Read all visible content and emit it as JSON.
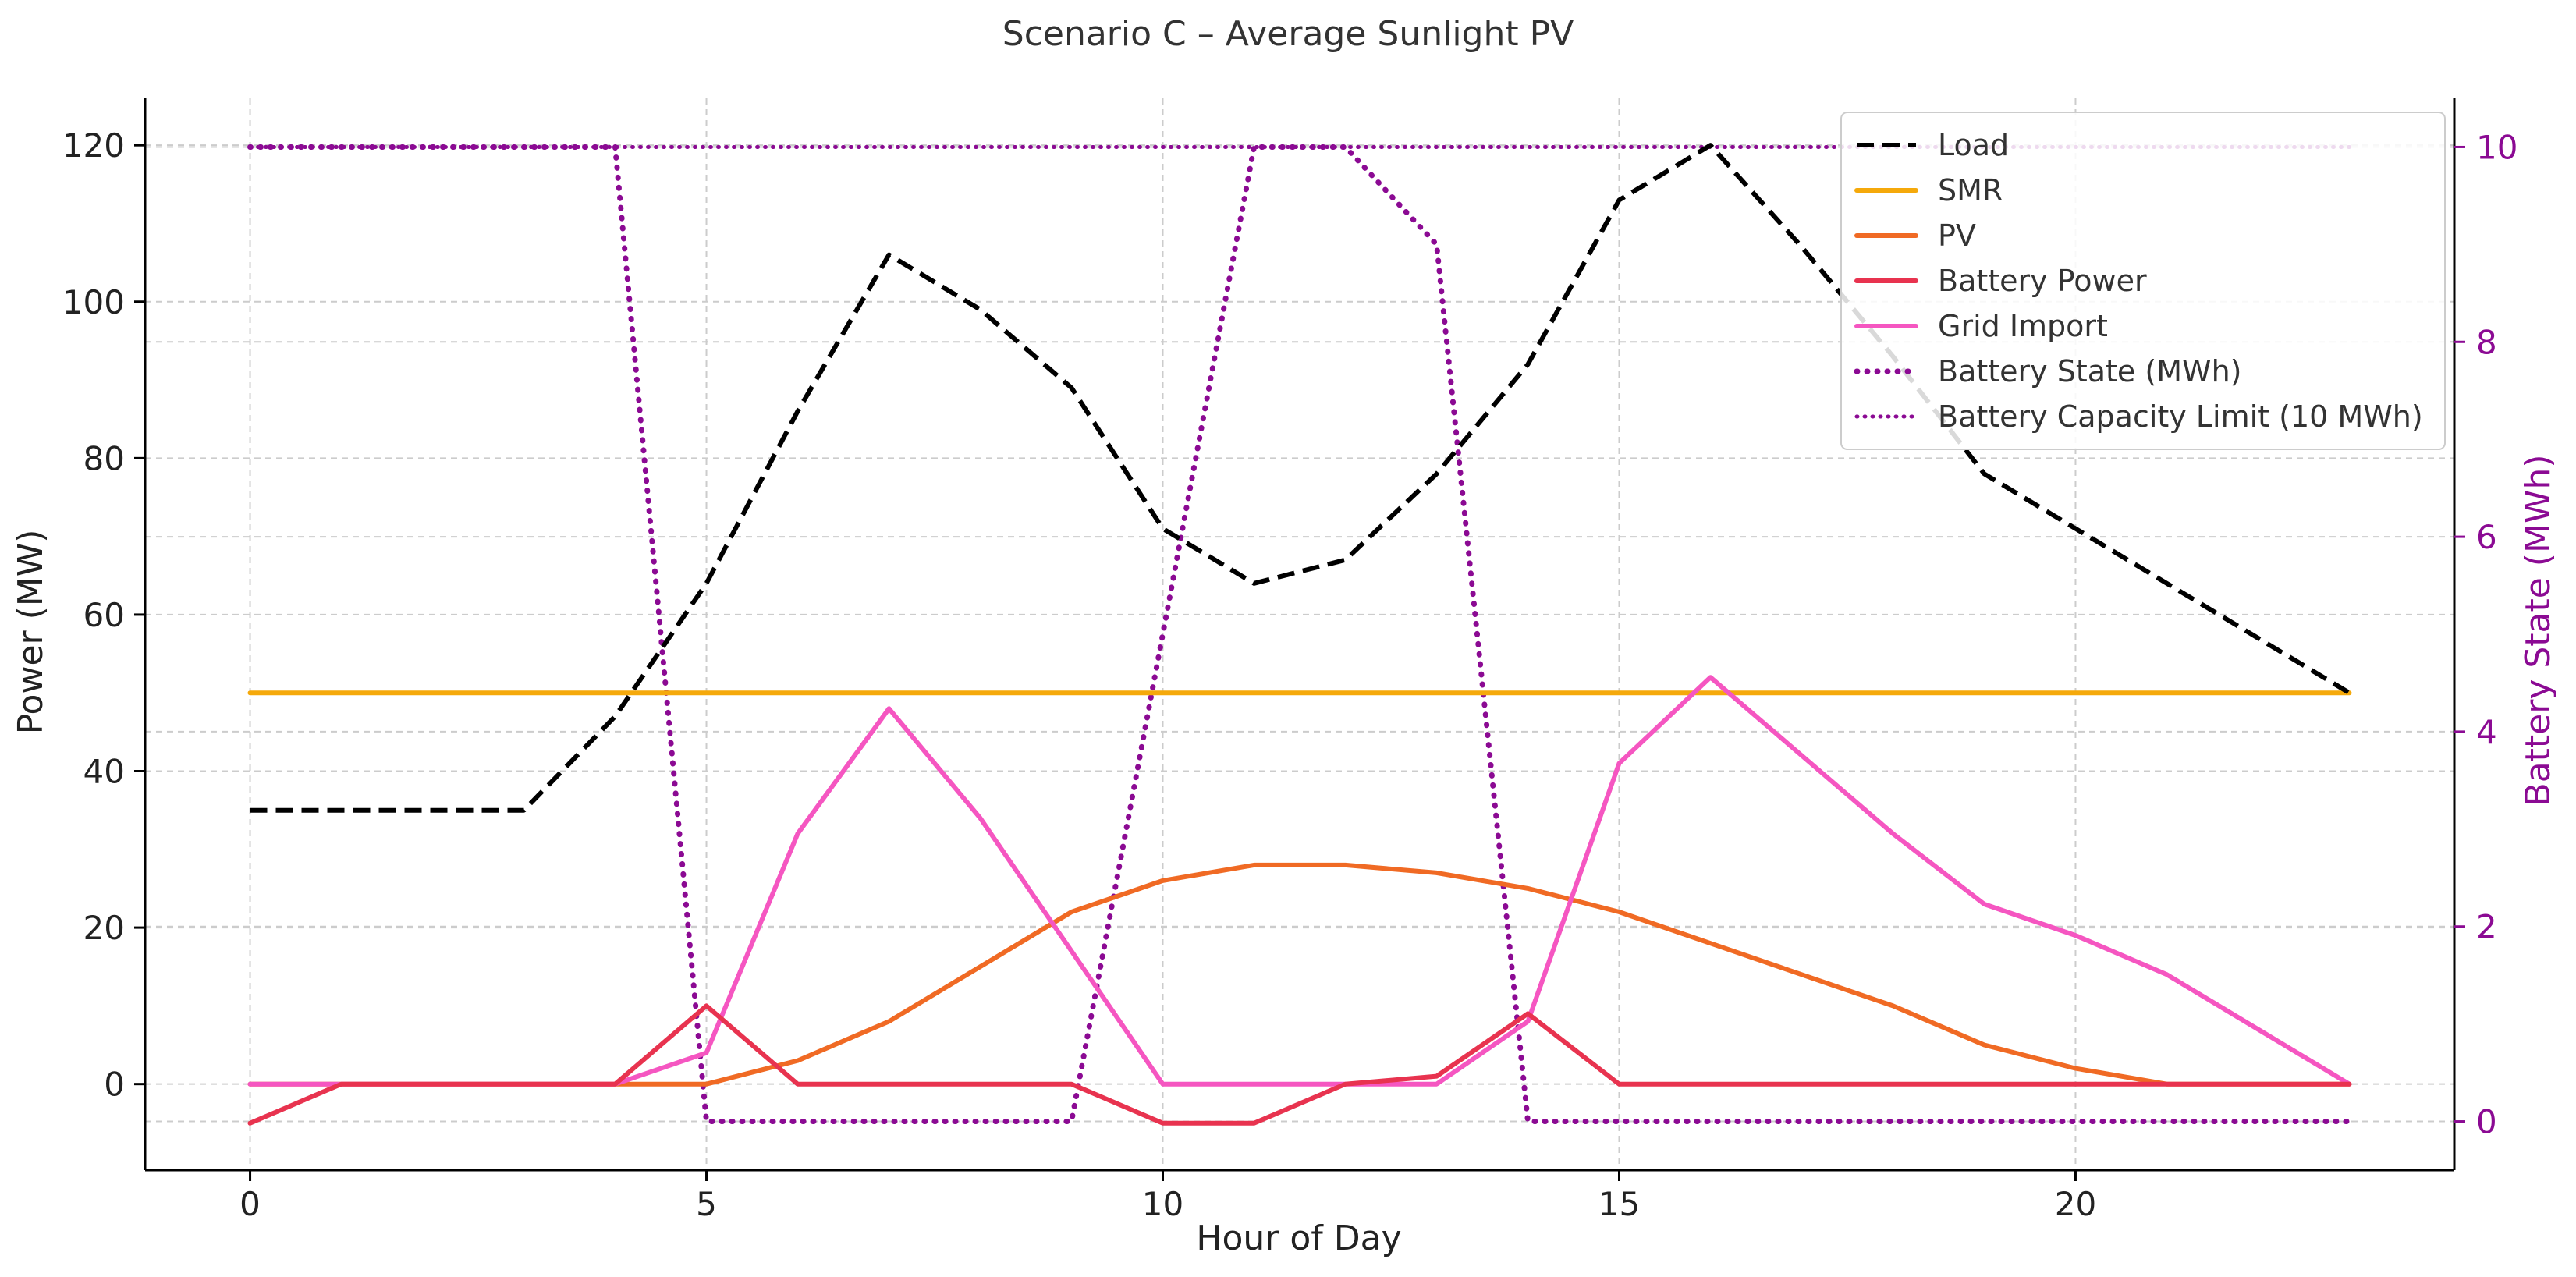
{
  "chart_data": {
    "type": "line",
    "title": "Scenario C – Average Sunlight PV",
    "xlabel": "Hour of Day",
    "ylabel": "Power (MW)",
    "y2label": "Battery State (MWh)",
    "xlim": [
      -1.15,
      24.15
    ],
    "ylim": [
      -11,
      126
    ],
    "y2lim": [
      -0.5,
      10.5
    ],
    "xticks": [
      0,
      5,
      10,
      15,
      20
    ],
    "yticks": [
      0,
      20,
      40,
      60,
      80,
      100,
      120
    ],
    "y2ticks": [
      0,
      2,
      4,
      6,
      8,
      10
    ],
    "x": [
      0,
      1,
      2,
      3,
      4,
      5,
      6,
      7,
      8,
      9,
      10,
      11,
      12,
      13,
      14,
      15,
      16,
      17,
      18,
      19,
      20,
      21,
      22,
      23
    ],
    "series": [
      {
        "name": "Load",
        "axis": "left",
        "color": "#000000",
        "style": "dashed",
        "values": [
          35,
          35,
          35,
          35,
          47,
          64,
          86,
          106,
          99,
          89,
          71,
          64,
          67,
          78,
          92,
          113,
          120,
          107,
          93,
          78,
          71,
          64,
          57,
          50
        ]
      },
      {
        "name": "SMR",
        "axis": "left",
        "color": "#f5a90b",
        "style": "solid",
        "values": [
          50,
          50,
          50,
          50,
          50,
          50,
          50,
          50,
          50,
          50,
          50,
          50,
          50,
          50,
          50,
          50,
          50,
          50,
          50,
          50,
          50,
          50,
          50,
          50
        ]
      },
      {
        "name": "PV",
        "axis": "left",
        "color": "#f06a24",
        "style": "solid",
        "values": [
          0,
          0,
          0,
          0,
          0,
          0,
          3,
          8,
          15,
          22,
          26,
          28,
          28,
          27,
          25,
          22,
          18,
          14,
          10,
          5,
          2,
          0,
          0,
          0
        ]
      },
      {
        "name": "Battery Power",
        "axis": "left",
        "color": "#e8334f",
        "style": "solid",
        "values": [
          -5,
          0,
          0,
          0,
          0,
          10,
          0,
          0,
          0,
          0,
          -5,
          -5,
          0,
          1,
          9,
          0,
          0,
          0,
          0,
          0,
          0,
          0,
          0,
          0
        ]
      },
      {
        "name": "Grid Import",
        "axis": "left",
        "color": "#f556c1",
        "style": "solid",
        "values": [
          0,
          0,
          0,
          0,
          0,
          4,
          32,
          48,
          34,
          17,
          0,
          0,
          0,
          0,
          8,
          41,
          52,
          42,
          32,
          23,
          19,
          14,
          7,
          0
        ]
      },
      {
        "name": "Battery State (MWh)",
        "axis": "right",
        "color": "#8b0a93",
        "style": "dotted",
        "values": [
          10,
          10,
          10,
          10,
          10,
          0,
          0,
          0,
          0,
          0,
          5,
          10,
          10,
          9,
          0,
          0,
          0,
          0,
          0,
          0,
          0,
          0,
          0,
          0
        ]
      },
      {
        "name": "Battery Capacity Limit (10 MWh)",
        "axis": "right",
        "color": "#8b0a93",
        "style": "dotted-thin",
        "values": [
          10,
          10,
          10,
          10,
          10,
          10,
          10,
          10,
          10,
          10,
          10,
          10,
          10,
          10,
          10,
          10,
          10,
          10,
          10,
          10,
          10,
          10,
          10,
          10
        ]
      }
    ],
    "legend": {
      "placement": "top-right"
    },
    "grid": true
  }
}
